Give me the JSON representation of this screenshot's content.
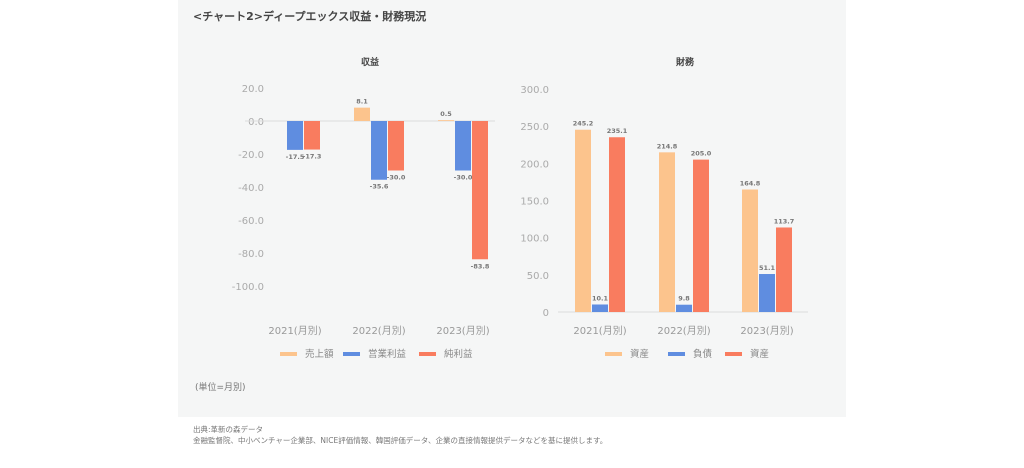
{
  "header": {
    "title": "<チャート2>ディープエックス収益・財務現況"
  },
  "footer": {
    "unit": "(単位=月別)",
    "source_line1": "出典:革新の森データ",
    "source_line2": "金融監督院、中小ベンチャー企業部、NICE評価情報、韓国評価データ、企業の直接情報提供データなどを基に提供します。"
  },
  "chart_data": [
    {
      "type": "bar",
      "title": "収益",
      "categories": [
        "2021(月別)",
        "2022(月別)",
        "2023(月別)"
      ],
      "series": [
        {
          "name": "売上額",
          "color": "#fcc48d",
          "values": [
            null,
            8.1,
            0.5
          ],
          "labels": [
            "",
            "8.1",
            "0.5"
          ]
        },
        {
          "name": "営業利益",
          "color": "#5f8de0",
          "values": [
            -17.5,
            -35.6,
            -30.0
          ],
          "labels": [
            "-17.5",
            "-35.6",
            "-30.0"
          ]
        },
        {
          "name": "純利益",
          "color": "#f97c5f",
          "values": [
            -17.3,
            -30.0,
            -83.8
          ],
          "labels": [
            "-17.3",
            "-30.0",
            "-83.8"
          ]
        }
      ],
      "yticks": [
        "20.0",
        "0.0",
        "-20.0",
        "-40.0",
        "-60.0",
        "-80.0",
        "-100.0"
      ],
      "ytick_values": [
        20,
        0,
        -20,
        -40,
        -60,
        -80,
        -100
      ],
      "ylim": [
        -100,
        20
      ],
      "legend": "bottom"
    },
    {
      "type": "bar",
      "title": "財務",
      "categories": [
        "2021(月別)",
        "2022(月別)",
        "2023(月別)"
      ],
      "series": [
        {
          "name": "資産",
          "color": "#fcc48d",
          "values": [
            245.2,
            214.8,
            164.8
          ],
          "labels": [
            "245.2",
            "214.8",
            "164.8"
          ]
        },
        {
          "name": "負債",
          "color": "#5f8de0",
          "values": [
            10.1,
            9.8,
            51.1
          ],
          "labels": [
            "10.1",
            "9.8",
            "51.1"
          ]
        },
        {
          "name": "資産",
          "color": "#f97c5f",
          "values": [
            235.1,
            205.0,
            113.7
          ],
          "labels": [
            "235.1",
            "205.0",
            "113.7"
          ]
        }
      ],
      "yticks": [
        "300.0",
        "250.0",
        "200.0",
        "150.0",
        "100.0",
        "50.0",
        "0"
      ],
      "ytick_values": [
        300,
        250,
        200,
        150,
        100,
        50,
        0
      ],
      "ylim": [
        0,
        300
      ],
      "legend": "bottom"
    }
  ]
}
